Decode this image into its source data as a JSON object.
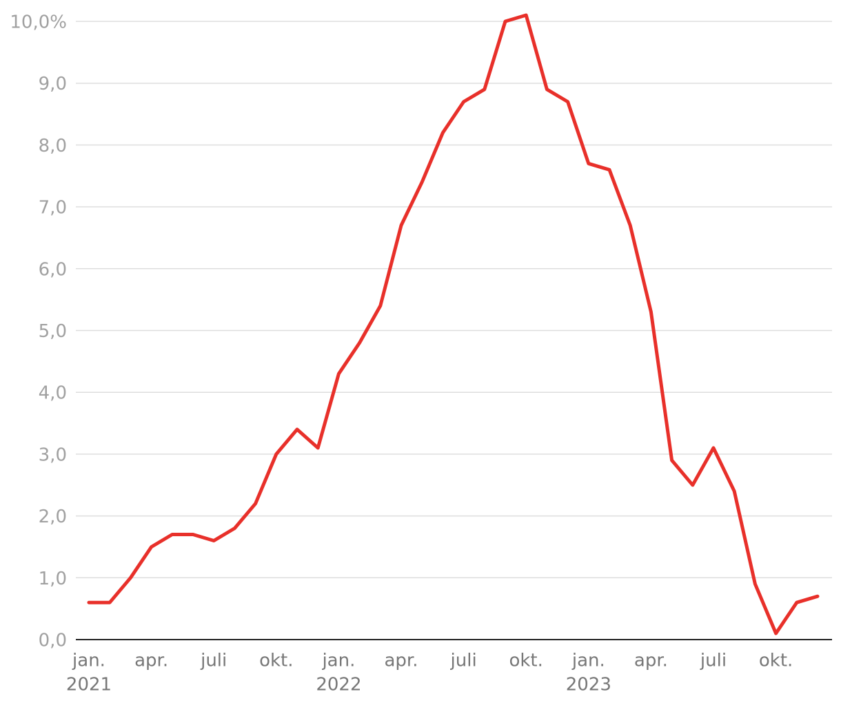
{
  "chart_data": {
    "type": "line",
    "categories": [
      "jan.",
      null,
      null,
      "apr.",
      null,
      null,
      "juli",
      null,
      null,
      "okt.",
      null,
      null,
      "jan.",
      null,
      null,
      "apr.",
      null,
      null,
      "juli",
      null,
      null,
      "okt.",
      null,
      null,
      "jan.",
      null,
      null,
      "apr.",
      null,
      null,
      "juli",
      null,
      null,
      "okt.",
      null,
      null
    ],
    "years": [
      "2021",
      "2022",
      "2023"
    ],
    "values": [
      0.6,
      0.6,
      1.0,
      1.5,
      1.7,
      1.7,
      1.6,
      1.8,
      2.2,
      3.0,
      3.4,
      3.1,
      4.3,
      4.8,
      5.4,
      6.7,
      7.4,
      8.2,
      8.7,
      8.9,
      10.0,
      10.1,
      8.9,
      8.7,
      7.7,
      7.6,
      6.7,
      5.3,
      2.9,
      2.5,
      3.1,
      2.4,
      0.9,
      0.1,
      0.6,
      0.7
    ],
    "color": "#e8302a",
    "ylim": [
      0,
      10
    ],
    "yticks": [
      {
        "value": 0,
        "label": "0,0"
      },
      {
        "value": 1,
        "label": "1,0"
      },
      {
        "value": 2,
        "label": "2,0"
      },
      {
        "value": 3,
        "label": "3,0"
      },
      {
        "value": 4,
        "label": "4,0"
      },
      {
        "value": 5,
        "label": "5,0"
      },
      {
        "value": 6,
        "label": "6,0"
      },
      {
        "value": 7,
        "label": "7,0"
      },
      {
        "value": 8,
        "label": "8,0"
      },
      {
        "value": 9,
        "label": "9,0"
      },
      {
        "value": 10,
        "label": "10,0%"
      }
    ],
    "grid": true
  }
}
